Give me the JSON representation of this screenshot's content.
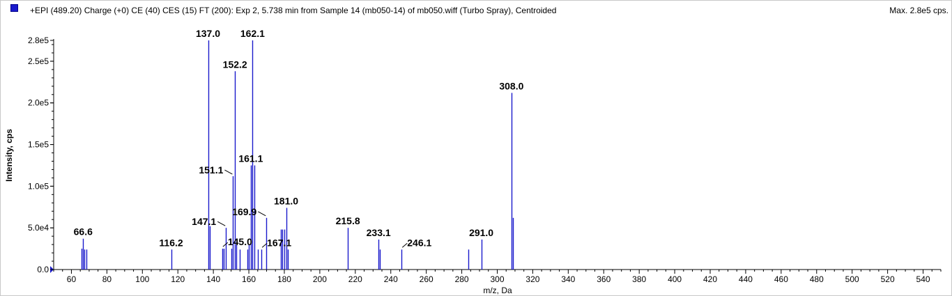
{
  "header": {
    "title": "+EPI (489.20) Charge (+0) CE (40) CES (15) FT (200): Exp 2, 5.738 min from Sample 14 (mb050-14) of mb050.wiff (Turbo Spray), Centroided",
    "max_label": "Max. 2.8e5 cps."
  },
  "colors": {
    "peak": "#1a1acc",
    "axis": "#000000",
    "label_leader": "#000000"
  },
  "chart_data": {
    "type": "bar",
    "xlabel": "m/z, Da",
    "ylabel": "Intensity, cps",
    "xlim": [
      50,
      550
    ],
    "ylim": [
      0,
      280000
    ],
    "x_ticks": [
      60,
      80,
      100,
      120,
      140,
      160,
      180,
      200,
      220,
      240,
      260,
      280,
      300,
      320,
      340,
      360,
      380,
      400,
      420,
      440,
      460,
      480,
      500,
      520,
      540
    ],
    "y_ticks": [
      {
        "value": 0,
        "label": "0.0"
      },
      {
        "value": 50000,
        "label": "5.0e4"
      },
      {
        "value": 100000,
        "label": "1.0e5"
      },
      {
        "value": 150000,
        "label": "1.5e5"
      },
      {
        "value": 200000,
        "label": "2.0e5"
      },
      {
        "value": 250000,
        "label": "2.5e5"
      },
      {
        "value": 275000,
        "label": "2.8e5"
      }
    ],
    "peaks": [
      {
        "mz": 65.8,
        "intensity": 25000
      },
      {
        "mz": 66.6,
        "intensity": 37000
      },
      {
        "mz": 67.4,
        "intensity": 24000
      },
      {
        "mz": 68.4,
        "intensity": 24000
      },
      {
        "mz": 116.2,
        "intensity": 24000
      },
      {
        "mz": 137.0,
        "intensity": 275000
      },
      {
        "mz": 138.0,
        "intensity": 52000
      },
      {
        "mz": 145.0,
        "intensity": 25000
      },
      {
        "mz": 146.0,
        "intensity": 25000
      },
      {
        "mz": 147.1,
        "intensity": 50000
      },
      {
        "mz": 150.0,
        "intensity": 25000
      },
      {
        "mz": 151.1,
        "intensity": 112000
      },
      {
        "mz": 152.2,
        "intensity": 238000
      },
      {
        "mz": 153.0,
        "intensity": 30000
      },
      {
        "mz": 155.0,
        "intensity": 24000
      },
      {
        "mz": 159.0,
        "intensity": 24000
      },
      {
        "mz": 160.0,
        "intensity": 30000
      },
      {
        "mz": 161.1,
        "intensity": 125000
      },
      {
        "mz": 162.1,
        "intensity": 275000
      },
      {
        "mz": 163.0,
        "intensity": 125000
      },
      {
        "mz": 165.0,
        "intensity": 24000
      },
      {
        "mz": 167.1,
        "intensity": 24000
      },
      {
        "mz": 169.9,
        "intensity": 62000
      },
      {
        "mz": 178.0,
        "intensity": 48000
      },
      {
        "mz": 179.0,
        "intensity": 48000
      },
      {
        "mz": 180.0,
        "intensity": 48000
      },
      {
        "mz": 181.0,
        "intensity": 74000
      },
      {
        "mz": 182.0,
        "intensity": 24000
      },
      {
        "mz": 215.8,
        "intensity": 50000
      },
      {
        "mz": 233.1,
        "intensity": 36000
      },
      {
        "mz": 233.8,
        "intensity": 24000
      },
      {
        "mz": 246.1,
        "intensity": 24000
      },
      {
        "mz": 283.8,
        "intensity": 24000
      },
      {
        "mz": 291.0,
        "intensity": 36000
      },
      {
        "mz": 308.0,
        "intensity": 212000
      },
      {
        "mz": 309.0,
        "intensity": 62000
      }
    ],
    "labels": [
      {
        "text": "66.6",
        "mz": 66.6,
        "intensity": 37000,
        "anchor": "above"
      },
      {
        "text": "116.2",
        "mz": 116.2,
        "intensity": 24000,
        "anchor": "above"
      },
      {
        "text": "137.0",
        "mz": 137.0,
        "intensity": 275000,
        "anchor": "above"
      },
      {
        "text": "162.1",
        "mz": 162.1,
        "intensity": 275000,
        "anchor": "above"
      },
      {
        "text": "152.2",
        "mz": 152.2,
        "intensity": 238000,
        "anchor": "above"
      },
      {
        "text": "151.1",
        "mz": 151.1,
        "intensity": 112000,
        "anchor": "left"
      },
      {
        "text": "161.1",
        "mz": 161.1,
        "intensity": 125000,
        "anchor": "above"
      },
      {
        "text": "147.1",
        "mz": 147.1,
        "intensity": 50000,
        "anchor": "left"
      },
      {
        "text": "145.0",
        "mz": 145.0,
        "intensity": 25000,
        "anchor": "right"
      },
      {
        "text": "169.9",
        "mz": 169.9,
        "intensity": 62000,
        "anchor": "left"
      },
      {
        "text": "167.1",
        "mz": 167.1,
        "intensity": 24000,
        "anchor": "right"
      },
      {
        "text": "181.0",
        "mz": 181.0,
        "intensity": 74000,
        "anchor": "above"
      },
      {
        "text": "215.8",
        "mz": 215.8,
        "intensity": 50000,
        "anchor": "above"
      },
      {
        "text": "233.1",
        "mz": 233.1,
        "intensity": 36000,
        "anchor": "above"
      },
      {
        "text": "246.1",
        "mz": 246.1,
        "intensity": 24000,
        "anchor": "right"
      },
      {
        "text": "291.0",
        "mz": 291.0,
        "intensity": 36000,
        "anchor": "above"
      },
      {
        "text": "308.0",
        "mz": 308.0,
        "intensity": 212000,
        "anchor": "above"
      }
    ]
  }
}
